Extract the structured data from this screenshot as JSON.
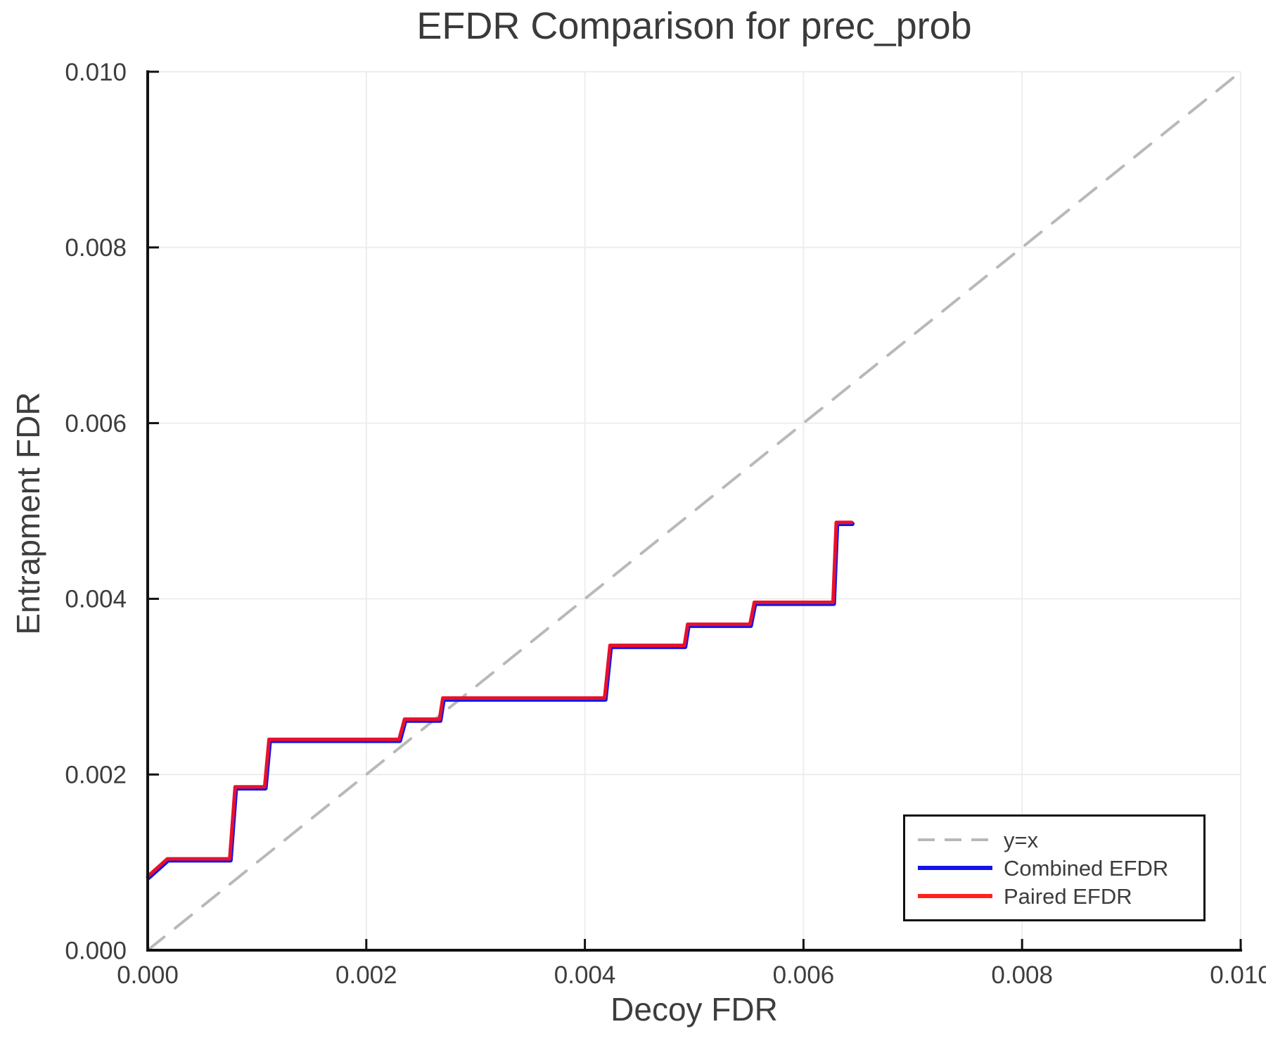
{
  "title": "EFDR Comparison for prec_prob",
  "axes": {
    "xlabel": "Decoy FDR",
    "ylabel": "Entrapment FDR",
    "xlim": [
      0.0,
      0.01
    ],
    "ylim": [
      0.0,
      0.01
    ],
    "xtick_values": [
      0.0,
      0.002,
      0.004,
      0.006,
      0.008,
      0.01
    ],
    "xtick_labels": [
      "0.000",
      "0.002",
      "0.004",
      "0.006",
      "0.008",
      "0.010"
    ],
    "ytick_values": [
      0.0,
      0.002,
      0.004,
      0.006,
      0.008,
      0.01
    ],
    "ytick_labels": [
      "0.000",
      "0.002",
      "0.004",
      "0.006",
      "0.008",
      "0.010"
    ],
    "grid": true
  },
  "legend": {
    "position": "lower right",
    "items": [
      {
        "label": "y=x",
        "color": "#b8b8b8",
        "style": "dashed"
      },
      {
        "label": "Combined EFDR",
        "color": "#1414e8",
        "style": "solid"
      },
      {
        "label": "Paired EFDR",
        "color": "#ff2419",
        "style": "solid"
      }
    ]
  },
  "colors": {
    "background": "#ffffff",
    "grid": "#ededed",
    "spine": "#111111",
    "text": "#3d3d3d",
    "reference_line": "#b9b9b9",
    "combined_line": "#1414e8",
    "paired_line": "#e8112d"
  },
  "chart_data": {
    "type": "line",
    "title": "EFDR Comparison for prec_prob",
    "xlabel": "Decoy FDR",
    "ylabel": "Entrapment FDR",
    "xlim": [
      0.0,
      0.01
    ],
    "ylim": [
      0.0,
      0.01
    ],
    "grid": true,
    "legend_position": "lower right",
    "series": [
      {
        "name": "y=x",
        "style": "dashed",
        "color": "#b9b9b9",
        "x": [
          0.0,
          0.01
        ],
        "y": [
          0.0,
          0.01
        ]
      },
      {
        "name": "Combined EFDR",
        "style": "solid",
        "color": "#1414e8",
        "note": "coincides with Paired EFDR and is hidden beneath it",
        "x": [
          0.0,
          0.00018,
          0.00075,
          0.0008,
          0.00107,
          0.00111,
          0.0023,
          0.00235,
          0.00267,
          0.0027,
          0.00418,
          0.00423,
          0.00491,
          0.00494,
          0.00551,
          0.00555,
          0.00627,
          0.0063,
          0.00644
        ],
        "y": [
          0.00084,
          0.00104,
          0.00104,
          0.00186,
          0.00186,
          0.0024,
          0.0024,
          0.00263,
          0.00263,
          0.00287,
          0.00287,
          0.00347,
          0.00347,
          0.00371,
          0.00371,
          0.00396,
          0.00396,
          0.00487,
          0.00487
        ]
      },
      {
        "name": "Paired EFDR",
        "style": "solid",
        "color": "#e8112d",
        "x": [
          0.0,
          0.00018,
          0.00075,
          0.0008,
          0.00107,
          0.00111,
          0.0023,
          0.00235,
          0.00267,
          0.0027,
          0.00418,
          0.00423,
          0.00491,
          0.00494,
          0.00551,
          0.00555,
          0.00627,
          0.0063,
          0.00644
        ],
        "y": [
          0.00084,
          0.00104,
          0.00104,
          0.00186,
          0.00186,
          0.0024,
          0.0024,
          0.00263,
          0.00263,
          0.00287,
          0.00287,
          0.00347,
          0.00347,
          0.00371,
          0.00371,
          0.00396,
          0.00396,
          0.00487,
          0.00487
        ]
      }
    ]
  }
}
